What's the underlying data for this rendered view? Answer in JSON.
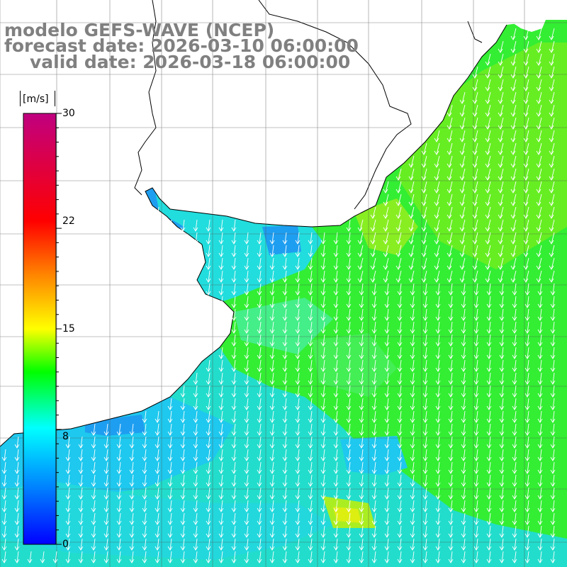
{
  "title": {
    "model": "modelo GEFS-WAVE (NCEP)",
    "forecast": "forecast date: 2026-03-10 06:00:00",
    "valid": "valid date: 2026-03-18 06:00:00"
  },
  "colorbar": {
    "unit": "[m/s]",
    "ticks": [
      "30",
      "22",
      "15",
      "8",
      "0"
    ],
    "range": [
      0,
      30
    ],
    "colors": [
      "#0000ff",
      "#0080ff",
      "#00ffff",
      "#00ff00",
      "#ffff00",
      "#ff8000",
      "#ff0000",
      "#c00080"
    ]
  },
  "map": {
    "variable": "wind speed",
    "ocean_base_color": "#33ee33",
    "land_color": "#ffffff",
    "grid": true,
    "arrow_direction": "south",
    "arrow_color": "#ffffff"
  }
}
